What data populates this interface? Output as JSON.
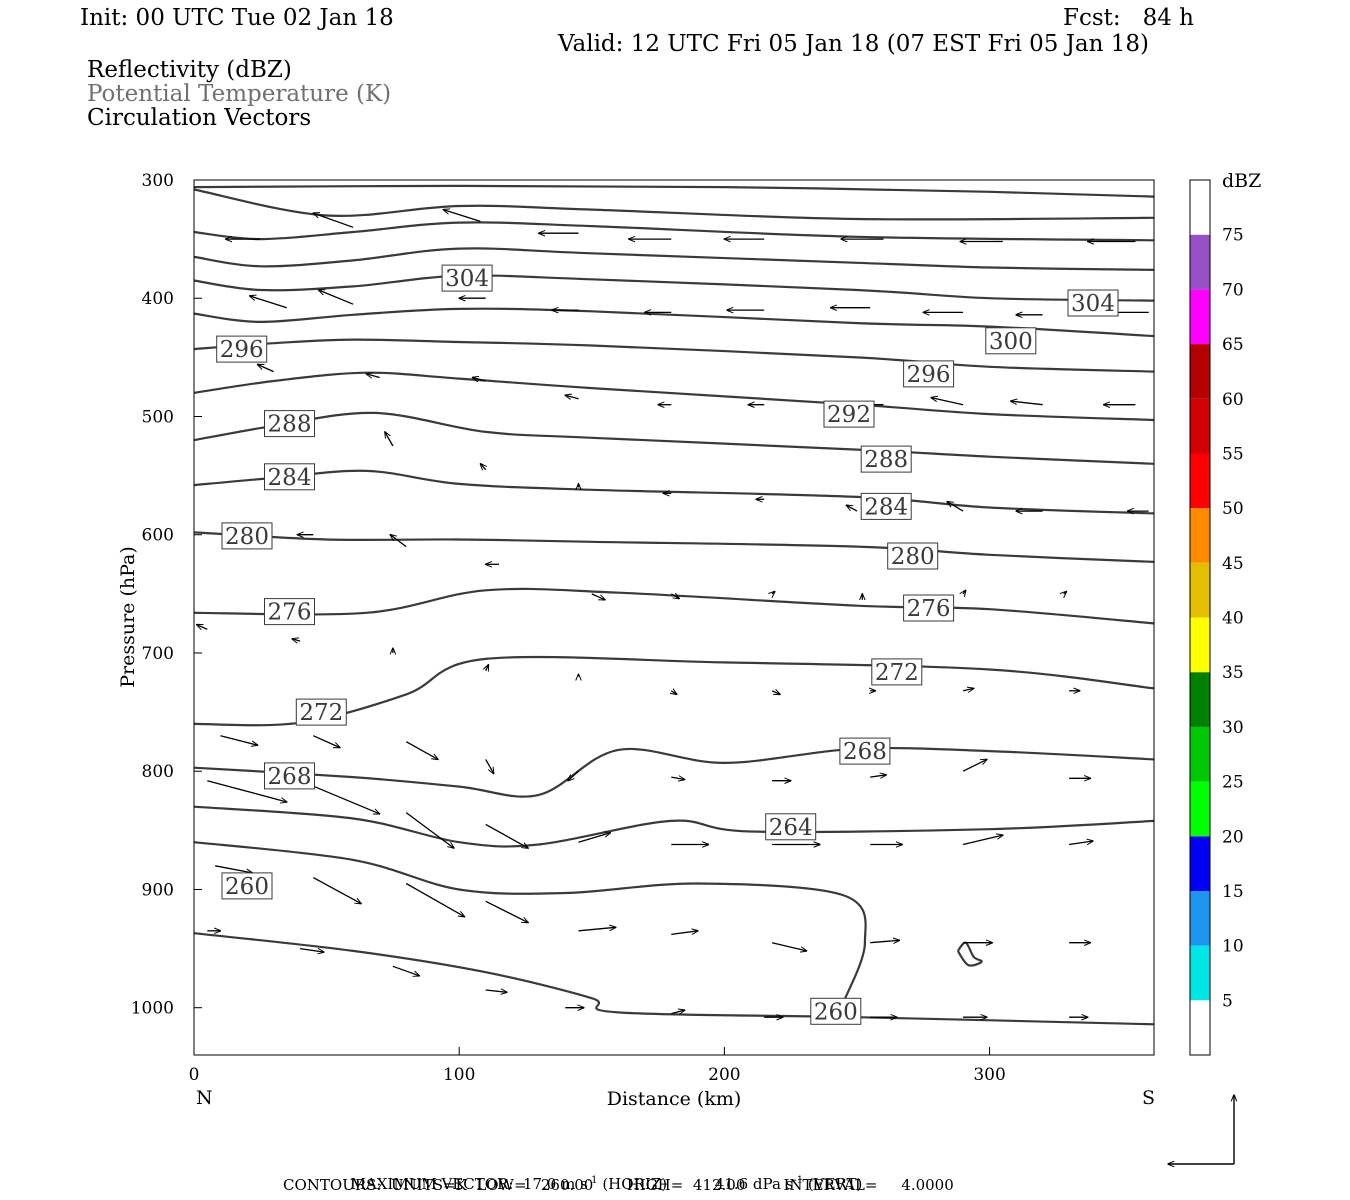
{
  "header": {
    "init": "Init: 00 UTC Tue 02 Jan 18",
    "fcst": "Fcst:   84 h",
    "valid": "Valid: 12 UTC Fri 05 Jan 18 (07 EST Fri 05 Jan 18)",
    "fields": [
      "Reflectivity (dBZ)",
      "Potential Temperature (K)",
      "Circulation Vectors"
    ]
  },
  "footer": {
    "max_vector_label": "MAXIMUM VECTOR:",
    "max_vector_horiz": "17.0 m s",
    "horiz_suffix": "(HORIZ)",
    "max_vector_vert": "41.6 dPa s",
    "vert_suffix": "(VERT)",
    "exp": "-1",
    "contours": "CONTOURS:  UNITS=K  LOW=   260.00       HIGH=  412.00        INTERVAL=     4.0000"
  },
  "chart_data": {
    "type": "cross-section",
    "xlabel": "Distance (km)",
    "ylabel": "Pressure (hPa)",
    "xlim": [
      0,
      362
    ],
    "ylim": [
      1040,
      300
    ],
    "x_ticks": [
      "0",
      "100",
      "200",
      "300"
    ],
    "y_ticks": [
      "300",
      "400",
      "500",
      "600",
      "700",
      "800",
      "900",
      "1000"
    ],
    "left_end_label": "N",
    "right_end_label": "S",
    "colorbar": {
      "unit": "dBZ",
      "labels": [
        "5",
        "10",
        "15",
        "20",
        "25",
        "30",
        "35",
        "40",
        "45",
        "50",
        "55",
        "60",
        "65",
        "70",
        "75"
      ],
      "colors": [
        "#ffffff",
        "#00e5e5",
        "#1e96f0",
        "#0000f0",
        "#00ff00",
        "#00c800",
        "#008000",
        "#ffff00",
        "#e6be00",
        "#ff8c00",
        "#ff0000",
        "#d20000",
        "#b40000",
        "#ff00ff",
        "#9650c8",
        "#ffffff"
      ]
    },
    "contour_labels": [
      "304",
      "304",
      "300",
      "296",
      "296",
      "292",
      "288",
      "288",
      "284",
      "284",
      "280",
      "280",
      "276",
      "276",
      "272",
      "272",
      "268",
      "268",
      "264",
      "260",
      "260"
    ],
    "isentropes": [
      {
        "pts": [
          [
            0,
            306
          ],
          [
            100,
            305
          ],
          [
            200,
            306
          ],
          [
            300,
            310
          ],
          [
            362,
            314
          ]
        ]
      },
      {
        "pts": [
          [
            0,
            308
          ],
          [
            50,
            330
          ],
          [
            100,
            322
          ],
          [
            150,
            325
          ],
          [
            250,
            333
          ],
          [
            362,
            332
          ]
        ]
      },
      {
        "pts": [
          [
            0,
            344
          ],
          [
            25,
            350
          ],
          [
            60,
            344
          ],
          [
            100,
            336
          ],
          [
            150,
            339
          ],
          [
            250,
            348
          ],
          [
            362,
            351
          ]
        ]
      },
      {
        "pts": [
          [
            0,
            365
          ],
          [
            25,
            373
          ],
          [
            60,
            368
          ],
          [
            100,
            358
          ],
          [
            150,
            362
          ],
          [
            250,
            370
          ],
          [
            300,
            374
          ],
          [
            362,
            376
          ]
        ]
      },
      {
        "pts": [
          [
            0,
            385
          ],
          [
            25,
            393
          ],
          [
            60,
            390
          ],
          [
            100,
            381
          ],
          [
            150,
            384
          ],
          [
            250,
            393
          ],
          [
            300,
            400
          ],
          [
            362,
            402
          ]
        ]
      },
      {
        "pts": [
          [
            0,
            413
          ],
          [
            25,
            420
          ],
          [
            60,
            414
          ],
          [
            100,
            409
          ],
          [
            150,
            411
          ],
          [
            250,
            421
          ],
          [
            300,
            424
          ],
          [
            362,
            432
          ]
        ]
      },
      {
        "pts": [
          [
            0,
            443
          ],
          [
            30,
            438
          ],
          [
            60,
            435
          ],
          [
            100,
            437
          ],
          [
            150,
            440
          ],
          [
            250,
            450
          ],
          [
            300,
            458
          ],
          [
            362,
            462
          ]
        ]
      },
      {
        "pts": [
          [
            0,
            480
          ],
          [
            30,
            470
          ],
          [
            65,
            463
          ],
          [
            100,
            468
          ],
          [
            150,
            476
          ],
          [
            250,
            490
          ],
          [
            300,
            498
          ],
          [
            362,
            503
          ]
        ]
      },
      {
        "pts": [
          [
            0,
            520
          ],
          [
            30,
            508
          ],
          [
            68,
            497
          ],
          [
            110,
            513
          ],
          [
            150,
            518
          ],
          [
            250,
            528
          ],
          [
            300,
            534
          ],
          [
            362,
            540
          ]
        ]
      },
      {
        "pts": [
          [
            0,
            558
          ],
          [
            30,
            552
          ],
          [
            65,
            546
          ],
          [
            100,
            557
          ],
          [
            150,
            562
          ],
          [
            250,
            568
          ],
          [
            300,
            577
          ],
          [
            362,
            582
          ]
        ]
      },
      {
        "pts": [
          [
            0,
            598
          ],
          [
            50,
            604
          ],
          [
            100,
            604
          ],
          [
            150,
            606
          ],
          [
            250,
            610
          ],
          [
            300,
            617
          ],
          [
            362,
            623
          ]
        ]
      },
      {
        "pts": [
          [
            0,
            666
          ],
          [
            65,
            666
          ],
          [
            110,
            647
          ],
          [
            160,
            649
          ],
          [
            250,
            660
          ],
          [
            300,
            663
          ],
          [
            362,
            675
          ]
        ]
      },
      {
        "pts": [
          [
            0,
            760
          ],
          [
            40,
            759
          ],
          [
            80,
            735
          ],
          [
            110,
            705
          ],
          [
            200,
            708
          ],
          [
            300,
            714
          ],
          [
            362,
            730
          ]
        ]
      },
      {
        "pts": [
          [
            0,
            797
          ],
          [
            60,
            805
          ],
          [
            100,
            813
          ],
          [
            130,
            820
          ],
          [
            160,
            782
          ],
          [
            200,
            793
          ],
          [
            250,
            781
          ],
          [
            300,
            783
          ],
          [
            362,
            790
          ]
        ]
      },
      {
        "pts": [
          [
            0,
            830
          ],
          [
            60,
            840
          ],
          [
            100,
            860
          ],
          [
            130,
            862
          ],
          [
            180,
            842
          ],
          [
            210,
            851
          ],
          [
            300,
            849
          ],
          [
            362,
            842
          ]
        ]
      },
      {
        "pts": [
          [
            0,
            860
          ],
          [
            60,
            875
          ],
          [
            100,
            900
          ],
          [
            140,
            903
          ],
          [
            190,
            895
          ],
          [
            245,
            905
          ],
          [
            253,
            945
          ],
          [
            245,
            995
          ]
        ]
      },
      {
        "pts": [
          [
            0,
            937
          ],
          [
            60,
            952
          ],
          [
            110,
            970
          ],
          [
            150,
            992
          ],
          [
            160,
            1004
          ],
          [
            250,
            1008
          ],
          [
            362,
            1014
          ]
        ]
      },
      {
        "pts": [
          [
            288,
            952
          ],
          [
            291,
            945
          ],
          [
            294,
            957
          ],
          [
            297,
            961
          ],
          [
            292,
            964
          ],
          [
            288,
            952
          ]
        ]
      }
    ],
    "vectors": [
      [
        25,
        350,
        -13,
        0
      ],
      [
        60,
        340,
        -15,
        -12
      ],
      [
        108,
        335,
        -14,
        -10
      ],
      [
        145,
        345,
        -15,
        0
      ],
      [
        180,
        350,
        -16,
        0
      ],
      [
        215,
        350,
        -15,
        0
      ],
      [
        260,
        350,
        -16,
        0
      ],
      [
        305,
        352,
        -16,
        0
      ],
      [
        355,
        352,
        -18,
        0
      ],
      [
        35,
        408,
        -14,
        -10
      ],
      [
        60,
        405,
        -13,
        -12
      ],
      [
        110,
        400,
        -10,
        0
      ],
      [
        145,
        410,
        -10,
        0
      ],
      [
        180,
        412,
        -10,
        0
      ],
      [
        215,
        410,
        -14,
        0
      ],
      [
        255,
        408,
        -15,
        0
      ],
      [
        290,
        412,
        -15,
        0
      ],
      [
        320,
        414,
        -10,
        0
      ],
      [
        360,
        412,
        -16,
        0
      ],
      [
        30,
        462,
        -6,
        -6
      ],
      [
        70,
        467,
        -5,
        -3
      ],
      [
        110,
        470,
        -5,
        -3
      ],
      [
        145,
        485,
        -5,
        -3
      ],
      [
        180,
        490,
        -5,
        0
      ],
      [
        215,
        490,
        -6,
        0
      ],
      [
        260,
        490,
        -12,
        0
      ],
      [
        290,
        490,
        -12,
        -6
      ],
      [
        320,
        490,
        -12,
        -3
      ],
      [
        355,
        490,
        -12,
        0
      ],
      [
        75,
        525,
        -3,
        -12
      ],
      [
        110,
        545,
        -2,
        -5
      ],
      [
        145,
        560,
        0,
        -3
      ],
      [
        180,
        565,
        -3,
        0
      ],
      [
        215,
        570,
        -3,
        0
      ],
      [
        250,
        580,
        -4,
        -5
      ],
      [
        290,
        580,
        -6,
        -8
      ],
      [
        320,
        580,
        -10,
        0
      ],
      [
        360,
        580,
        -8,
        0
      ],
      [
        45,
        600,
        -6,
        0
      ],
      [
        80,
        610,
        -6,
        -10
      ],
      [
        115,
        625,
        -5,
        0
      ],
      [
        150,
        650,
        5,
        5
      ],
      [
        180,
        650,
        3,
        4
      ],
      [
        218,
        650,
        1,
        -2
      ],
      [
        252,
        655,
        0,
        -5
      ],
      [
        290,
        650,
        1,
        -3
      ],
      [
        328,
        650,
        1,
        -2
      ],
      [
        5,
        680,
        -4,
        -4
      ],
      [
        40,
        690,
        -3,
        -2
      ],
      [
        75,
        700,
        0,
        -4
      ],
      [
        110,
        715,
        1,
        -5
      ],
      [
        145,
        720,
        0,
        -2
      ],
      [
        180,
        732,
        2,
        3
      ],
      [
        218,
        732,
        3,
        3
      ],
      [
        255,
        732,
        2,
        0
      ],
      [
        290,
        732,
        4,
        -2
      ],
      [
        330,
        732,
        4,
        0
      ],
      [
        10,
        770,
        14,
        8
      ],
      [
        45,
        770,
        10,
        10
      ],
      [
        80,
        775,
        12,
        15
      ],
      [
        110,
        790,
        3,
        12
      ],
      [
        145,
        800,
        -4,
        8
      ],
      [
        180,
        805,
        5,
        2
      ],
      [
        218,
        808,
        7,
        0
      ],
      [
        255,
        805,
        6,
        -2
      ],
      [
        290,
        800,
        9,
        -10
      ],
      [
        330,
        806,
        8,
        0
      ],
      [
        5,
        808,
        30,
        18
      ],
      [
        40,
        808,
        30,
        28
      ],
      [
        80,
        835,
        18,
        30
      ],
      [
        110,
        845,
        16,
        20
      ],
      [
        145,
        860,
        12,
        -8
      ],
      [
        180,
        862,
        14,
        0
      ],
      [
        218,
        862,
        18,
        0
      ],
      [
        255,
        862,
        12,
        0
      ],
      [
        290,
        862,
        15,
        -8
      ],
      [
        330,
        862,
        9,
        -3
      ],
      [
        8,
        880,
        14,
        6
      ],
      [
        45,
        890,
        18,
        22
      ],
      [
        80,
        895,
        22,
        28
      ],
      [
        110,
        910,
        16,
        18
      ],
      [
        145,
        935,
        14,
        -3
      ],
      [
        180,
        938,
        10,
        -3
      ],
      [
        218,
        945,
        13,
        7
      ],
      [
        255,
        945,
        11,
        -2
      ],
      [
        290,
        945,
        11,
        0
      ],
      [
        330,
        945,
        8,
        0
      ],
      [
        5,
        935,
        5,
        0
      ],
      [
        40,
        950,
        9,
        3
      ],
      [
        75,
        965,
        10,
        8
      ],
      [
        110,
        985,
        8,
        2
      ],
      [
        140,
        1000,
        7,
        0
      ],
      [
        180,
        1005,
        5,
        -3
      ],
      [
        215,
        1008,
        7,
        0
      ],
      [
        255,
        1008,
        10,
        0
      ],
      [
        290,
        1008,
        9,
        0
      ],
      [
        330,
        1008,
        7,
        0
      ]
    ]
  }
}
